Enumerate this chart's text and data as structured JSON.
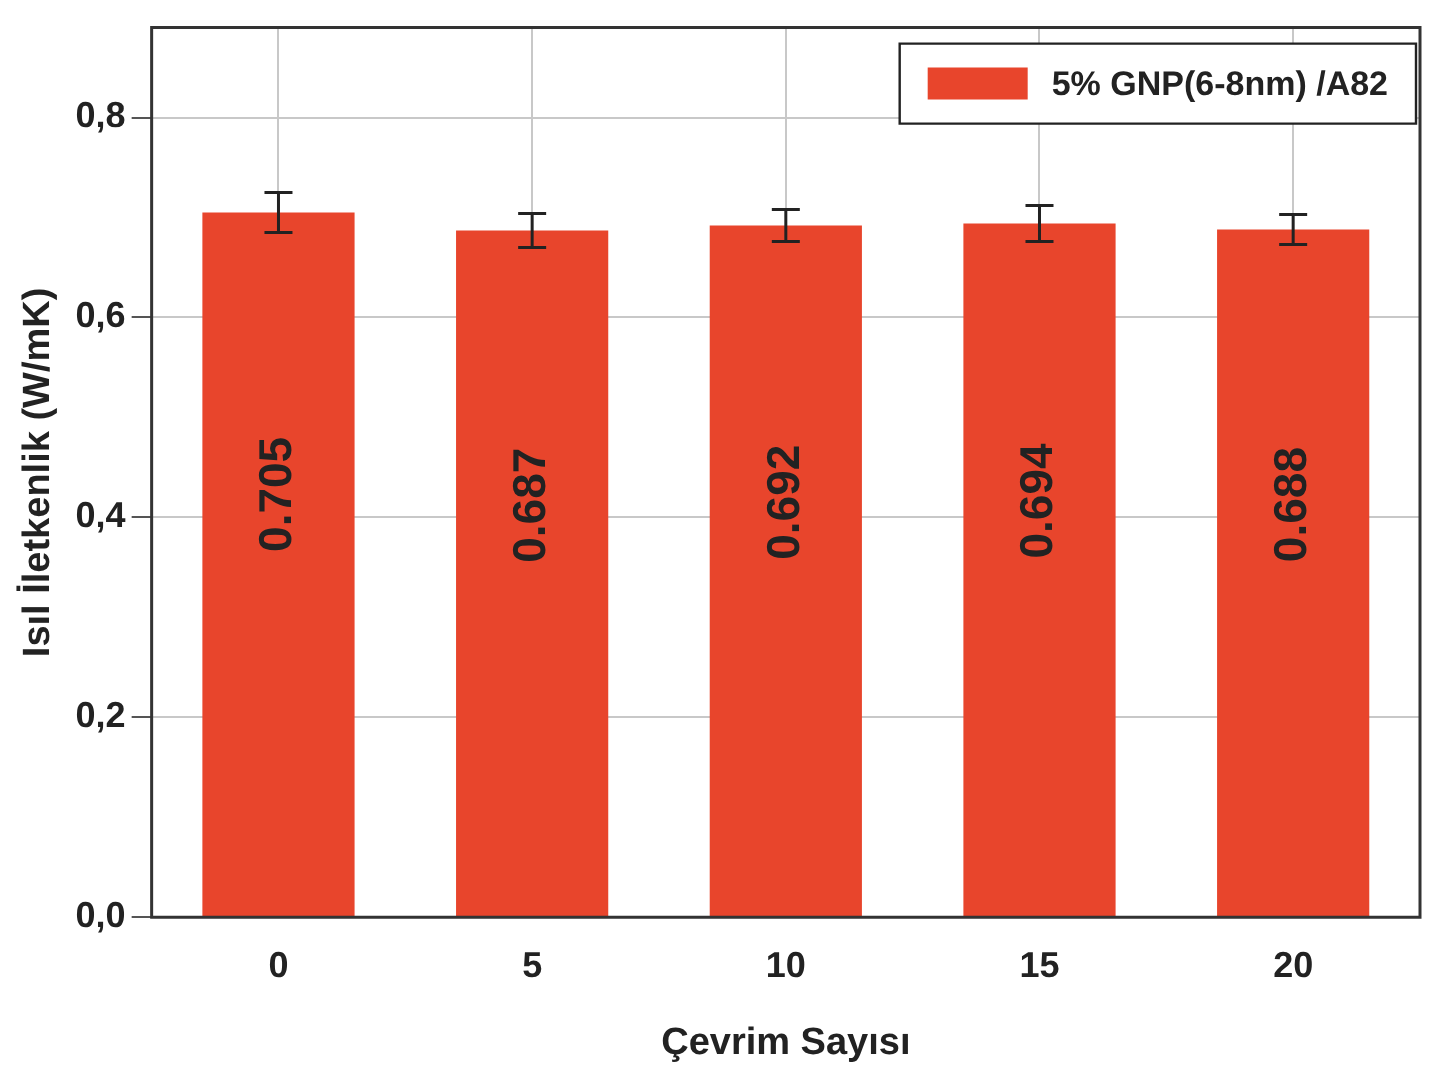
{
  "chart_data": {
    "type": "bar",
    "xlabel": "Çevrim Sayısı",
    "ylabel": "Isıl İletkenlik (W/mK)",
    "categories": [
      "0",
      "5",
      "10",
      "15",
      "20"
    ],
    "series": [
      {
        "name": "5% GNP(6-8nm) /A82",
        "color": "#e8452c",
        "values": [
          0.705,
          0.687,
          0.692,
          0.694,
          0.688
        ],
        "errors": [
          0.02,
          0.017,
          0.016,
          0.018,
          0.015
        ]
      }
    ],
    "ylim": [
      0,
      0.89
    ],
    "yticks": [
      {
        "value": 0,
        "label": "0,0"
      },
      {
        "value": 0.2,
        "label": "0,2"
      },
      {
        "value": 0.4,
        "label": "0,4"
      },
      {
        "value": 0.6,
        "label": "0,6"
      },
      {
        "value": 0.8,
        "label": "0,8"
      }
    ],
    "grid": true,
    "legend": "top right",
    "data_labels": true
  }
}
